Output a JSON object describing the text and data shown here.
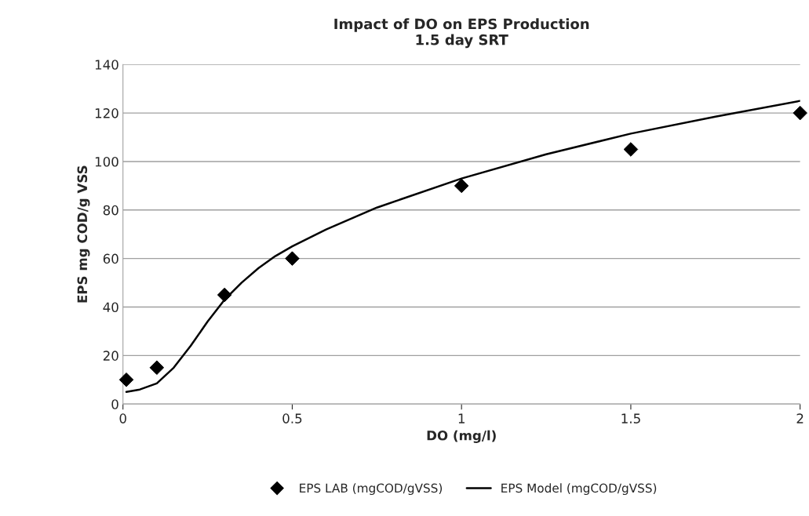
{
  "chart_data": {
    "type": "scatter",
    "title": "Impact of DO on EPS Production\n1.5 day SRT",
    "xlabel": "DO (mg/l)",
    "ylabel": "EPS mg COD/g VSS",
    "series": [
      {
        "name": "EPS LAB (mgCOD/gVSS)",
        "color": "#000000",
        "marker": "diamond",
        "x": [
          0.01,
          0.1,
          0.3,
          0.5,
          1,
          1.5,
          2
        ],
        "values": [
          10,
          15,
          45,
          60,
          90,
          105,
          120
        ]
      },
      {
        "name": "EPS Model (mgCOD/gVSS)",
        "type": "line",
        "color": "#000000",
        "marker": "none",
        "line_style": "solid",
        "x": [
          0.01,
          0.05,
          0.1,
          0.15,
          0.2,
          0.25,
          0.3,
          0.35,
          0.4,
          0.45,
          0.5,
          0.6,
          0.75,
          1,
          1.25,
          1.5,
          1.75,
          2
        ],
        "values": [
          5,
          6,
          8.5,
          15,
          24,
          34,
          43,
          50,
          56,
          61,
          65,
          72,
          81,
          93,
          103,
          111.5,
          118.5,
          125
        ]
      }
    ],
    "xlim": [
      0,
      2
    ],
    "xticks": [
      0,
      0.5,
      1,
      1.5,
      2
    ],
    "ylim": [
      0,
      140
    ],
    "yticks": [
      0,
      20,
      40,
      60,
      80,
      100,
      120,
      140
    ],
    "grid": "y",
    "legend": "bottom"
  }
}
